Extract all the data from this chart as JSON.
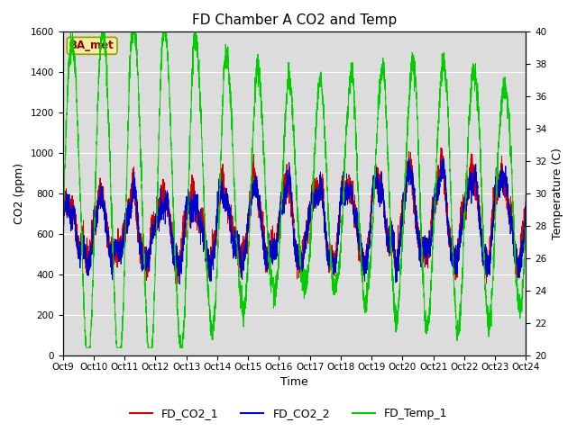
{
  "title": "FD Chamber A CO2 and Temp",
  "xlabel": "Time",
  "ylabel_left": "CO2 (ppm)",
  "ylabel_right": "Temperature (C)",
  "ylim_left": [
    0,
    1600
  ],
  "ylim_right": [
    20,
    40
  ],
  "yticks_left": [
    0,
    200,
    400,
    600,
    800,
    1000,
    1200,
    1400,
    1600
  ],
  "yticks_right": [
    20,
    22,
    24,
    26,
    28,
    30,
    32,
    34,
    36,
    38,
    40
  ],
  "x_tick_labels": [
    "Oct 9",
    "Oct 10",
    "Oct 11",
    "Oct 12",
    "Oct 13",
    "Oct 14",
    "Oct 15",
    "Oct 16",
    "Oct 17",
    "Oct 18",
    "Oct 19",
    "Oct 20",
    "Oct 21",
    "Oct 22",
    "Oct 23",
    "Oct 24"
  ],
  "color_co2_1": "#cc0000",
  "color_co2_2": "#0000cc",
  "color_temp_1": "#00cc00",
  "legend_labels": [
    "FD_CO2_1",
    "FD_CO2_2",
    "FD_Temp_1"
  ],
  "watermark_text": "BA_met",
  "background_color": "#dcdcdc",
  "figure_background": "#ffffff",
  "grid_color": "#ffffff",
  "title_fontsize": 11,
  "axis_fontsize": 9,
  "tick_fontsize": 7.5,
  "legend_fontsize": 9,
  "linewidth": 0.7
}
